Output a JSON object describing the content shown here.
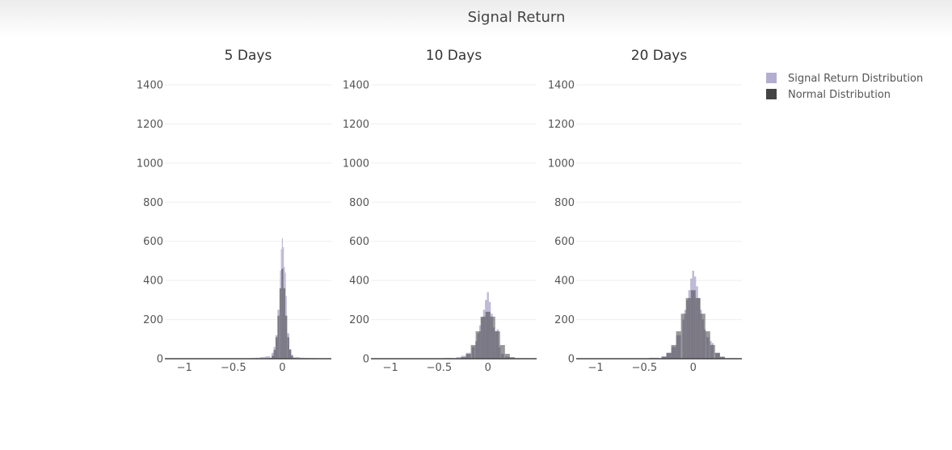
{
  "figure": {
    "title": "Signal Return"
  },
  "legend": {
    "placement": "top-right",
    "items": [
      {
        "label": "Signal Return Distribution",
        "color": "#b3adce"
      },
      {
        "label": "Normal Distribution",
        "color": "#444444"
      }
    ]
  },
  "chart_data": [
    {
      "type": "histogram",
      "title": "5 Days",
      "xlim": [
        -1.2,
        0.5
      ],
      "ylim": [
        0,
        1400
      ],
      "grid": true,
      "x_ticks": [
        -1,
        -0.5,
        0
      ],
      "x_tick_labels": [
        "−1",
        "−0.5",
        "0"
      ],
      "y_ticks": [
        0,
        200,
        400,
        600,
        800,
        1000,
        1200,
        1400
      ],
      "y_tick_labels": [
        "0",
        "200",
        "400",
        "600",
        "800",
        "1000",
        "1200",
        "1400"
      ],
      "series": [
        {
          "name": "Signal Return Distribution",
          "color": "#b3adce",
          "x": [
            -0.3,
            -0.25,
            -0.2,
            -0.15,
            -0.1,
            -0.08,
            -0.06,
            -0.04,
            -0.02,
            -0.01,
            0,
            0.01,
            0.02,
            0.03,
            0.04,
            0.06,
            0.08,
            0.1,
            0.15,
            0.2,
            0.25,
            0.3,
            0.35,
            0.4
          ],
          "counts": [
            3,
            5,
            8,
            12,
            30,
            60,
            120,
            250,
            450,
            560,
            615,
            570,
            470,
            440,
            320,
            130,
            50,
            20,
            8,
            5,
            4,
            3,
            2,
            1
          ]
        },
        {
          "name": "Normal Distribution",
          "color": "#444444",
          "x": [
            -0.12,
            -0.1,
            -0.08,
            -0.06,
            -0.04,
            -0.02,
            0,
            0.02,
            0.04,
            0.06,
            0.08,
            0.1,
            0.12
          ],
          "counts": [
            5,
            15,
            45,
            110,
            220,
            360,
            460,
            360,
            220,
            110,
            45,
            15,
            5
          ]
        }
      ]
    },
    {
      "type": "histogram",
      "title": "10 Days",
      "xlim": [
        -1.2,
        0.5
      ],
      "ylim": [
        0,
        1400
      ],
      "grid": true,
      "x_ticks": [
        -1,
        -0.5,
        0
      ],
      "x_tick_labels": [
        "−1",
        "−0.5",
        "0"
      ],
      "y_ticks": [
        0,
        200,
        400,
        600,
        800,
        1000,
        1200,
        1400
      ],
      "y_tick_labels": [
        "0",
        "200",
        "400",
        "600",
        "800",
        "1000",
        "1200",
        "1400"
      ],
      "series": [
        {
          "name": "Signal Return Distribution",
          "color": "#b3adce",
          "x": [
            -0.5,
            -0.4,
            -0.3,
            -0.25,
            -0.2,
            -0.15,
            -0.12,
            -0.1,
            -0.08,
            -0.06,
            -0.04,
            -0.02,
            0,
            0.02,
            0.04,
            0.06,
            0.08,
            0.1,
            0.12,
            0.15,
            0.2,
            0.3
          ],
          "counts": [
            2,
            4,
            8,
            15,
            30,
            60,
            90,
            130,
            170,
            210,
            250,
            300,
            340,
            290,
            230,
            160,
            140,
            150,
            60,
            25,
            10,
            3
          ]
        },
        {
          "name": "Normal Distribution",
          "color": "#444444",
          "x": [
            -0.25,
            -0.2,
            -0.15,
            -0.1,
            -0.05,
            0,
            0.05,
            0.1,
            0.15,
            0.2,
            0.25
          ],
          "counts": [
            8,
            25,
            70,
            140,
            215,
            240,
            215,
            140,
            70,
            25,
            8
          ]
        }
      ]
    },
    {
      "type": "histogram",
      "title": "20 Days",
      "xlim": [
        -1.2,
        0.5
      ],
      "ylim": [
        0,
        1400
      ],
      "grid": true,
      "x_ticks": [
        -1,
        -0.5,
        0
      ],
      "x_tick_labels": [
        "−1",
        "−0.5",
        "0"
      ],
      "y_ticks": [
        0,
        200,
        400,
        600,
        800,
        1000,
        1200,
        1400
      ],
      "y_tick_labels": [
        "0",
        "200",
        "400",
        "600",
        "800",
        "1000",
        "1200",
        "1400"
      ],
      "series": [
        {
          "name": "Signal Return Distribution",
          "color": "#b3adce",
          "x": [
            -0.5,
            -0.4,
            -0.3,
            -0.25,
            -0.2,
            -0.15,
            -0.1,
            -0.08,
            -0.06,
            -0.04,
            -0.02,
            0,
            0.02,
            0.04,
            0.06,
            0.08,
            0.1,
            0.12,
            0.15,
            0.18,
            0.2,
            0.25,
            0.3,
            0.4
          ],
          "counts": [
            2,
            5,
            12,
            30,
            60,
            120,
            200,
            250,
            300,
            350,
            410,
            450,
            420,
            370,
            310,
            250,
            200,
            150,
            110,
            90,
            80,
            30,
            10,
            3
          ]
        },
        {
          "name": "Normal Distribution",
          "color": "#444444",
          "x": [
            -0.3,
            -0.25,
            -0.2,
            -0.15,
            -0.1,
            -0.05,
            0,
            0.05,
            0.1,
            0.15,
            0.2,
            0.25,
            0.3
          ],
          "counts": [
            10,
            30,
            70,
            140,
            230,
            310,
            350,
            310,
            230,
            140,
            70,
            30,
            10
          ]
        }
      ]
    }
  ]
}
